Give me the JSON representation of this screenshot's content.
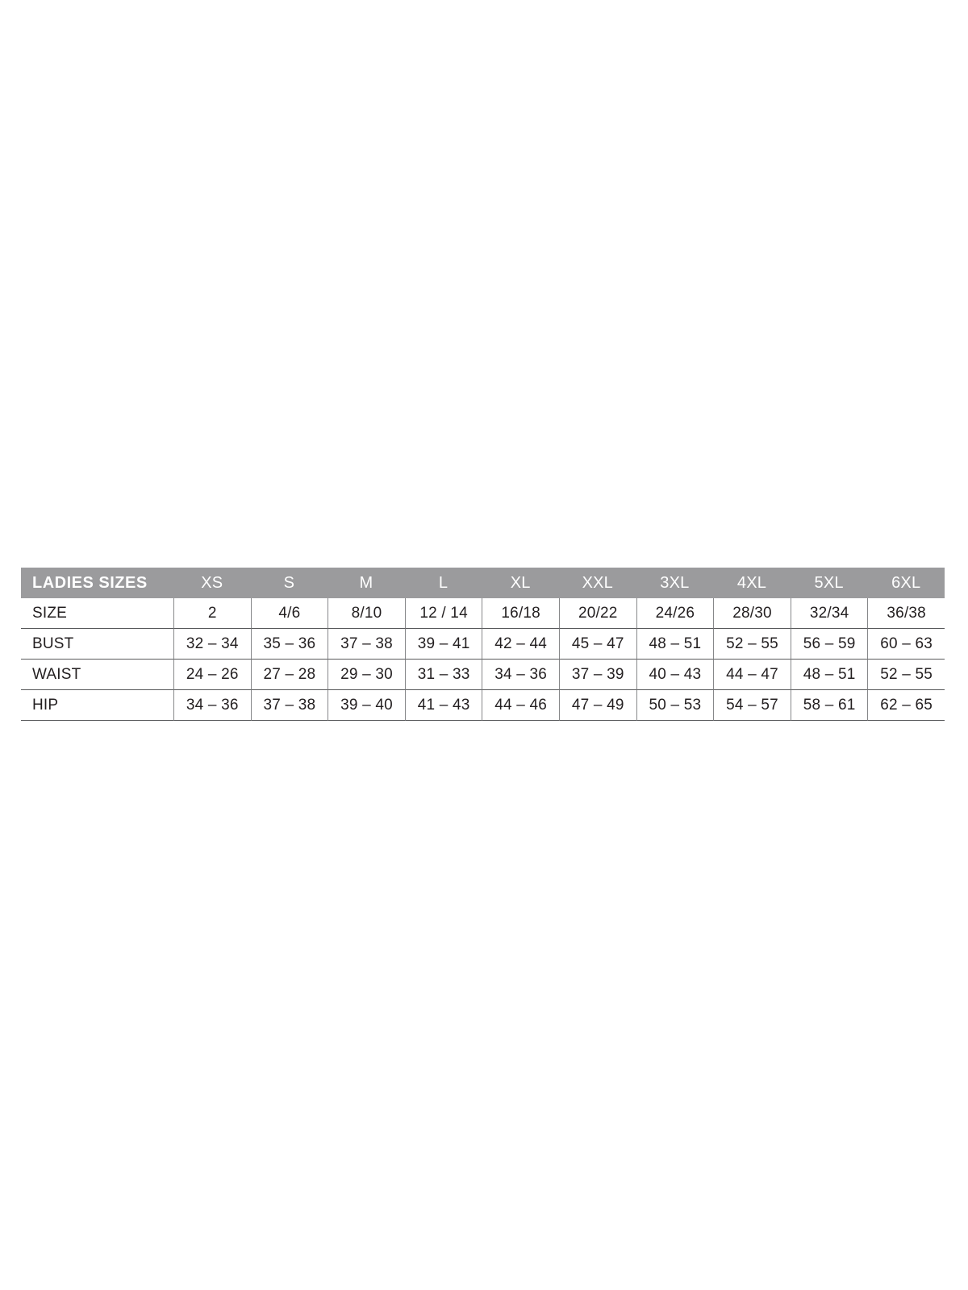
{
  "table": {
    "header": {
      "title": "LADIES SIZES",
      "columns": [
        "XS",
        "S",
        "M",
        "L",
        "XL",
        "XXL",
        "3XL",
        "4XL",
        "5XL",
        "6XL"
      ],
      "background_color": "#9b9b9d",
      "text_color": "#ffffff"
    },
    "rows": [
      {
        "label": "SIZE",
        "values": [
          "2",
          "4/6",
          "8/10",
          "12 / 14",
          "16/18",
          "20/22",
          "24/26",
          "28/30",
          "32/34",
          "36/38"
        ]
      },
      {
        "label": "BUST",
        "values": [
          "32 – 34",
          "35 – 36",
          "37 – 38",
          "39 – 41",
          "42 – 44",
          "45 – 47",
          "48 – 51",
          "52 – 55",
          "56 – 59",
          "60 – 63"
        ]
      },
      {
        "label": "WAIST",
        "values": [
          "24 – 26",
          "27 – 28",
          "29 – 30",
          "31 – 33",
          "34 – 36",
          "37 – 39",
          "40 – 43",
          "44 – 47",
          "48 – 51",
          "52 – 55"
        ]
      },
      {
        "label": "HIP",
        "values": [
          "34 – 36",
          "37 – 38",
          "39 – 40",
          "41 – 43",
          "44 – 46",
          "47 – 49",
          "50 – 53",
          "54 – 57",
          "58 – 61",
          "62 – 65"
        ]
      }
    ],
    "colors": {
      "horizontal_rule": "#58595b",
      "vertical_rule": "#87888a",
      "body_text": "#231f20",
      "page_background": "#ffffff"
    }
  }
}
